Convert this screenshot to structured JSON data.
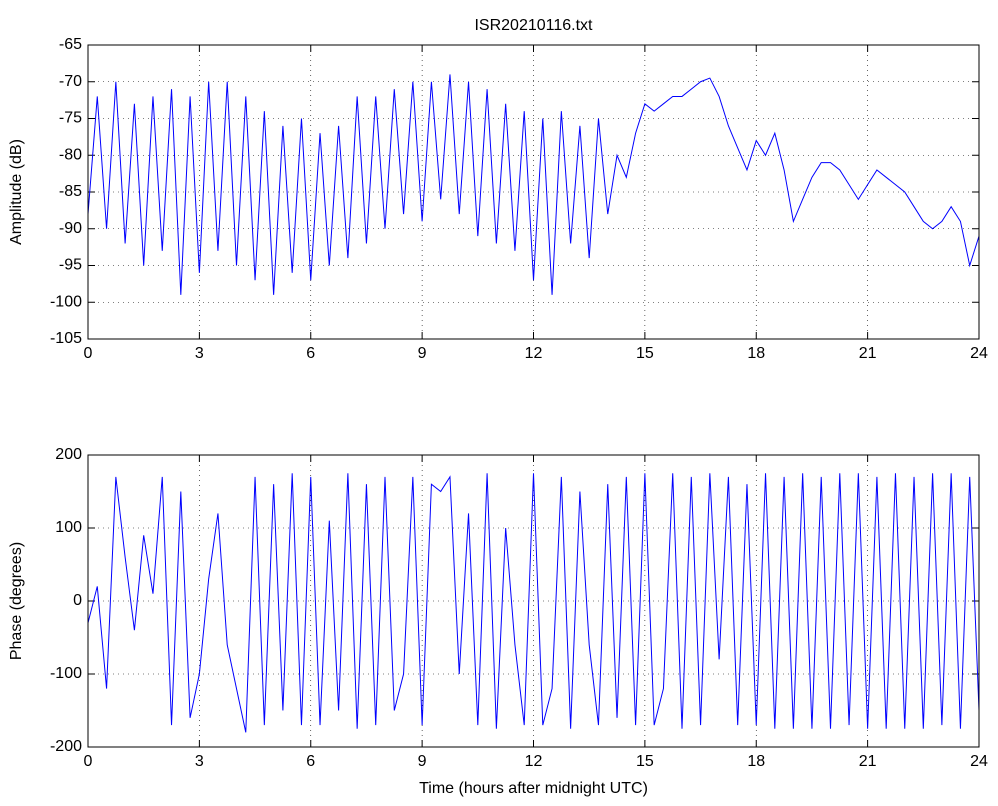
{
  "chart_data": [
    {
      "type": "line",
      "title": "ISR20210116.txt",
      "y_label": "Amplitude (dB)",
      "grid": true,
      "x": [
        0,
        0.25,
        0.5,
        0.75,
        1,
        1.25,
        1.5,
        1.75,
        2,
        2.25,
        2.5,
        2.75,
        3,
        3.25,
        3.5,
        3.75,
        4,
        4.25,
        4.5,
        4.75,
        5,
        5.25,
        5.5,
        5.75,
        6,
        6.25,
        6.5,
        6.75,
        7,
        7.25,
        7.5,
        7.75,
        8,
        8.25,
        8.5,
        8.75,
        9,
        9.25,
        9.5,
        9.75,
        10,
        10.25,
        10.5,
        10.75,
        11,
        11.25,
        11.5,
        11.75,
        12,
        12.25,
        12.5,
        12.75,
        13,
        13.25,
        13.5,
        13.75,
        14,
        14.25,
        14.5,
        14.75,
        15,
        15.25,
        15.5,
        15.75,
        16,
        16.25,
        16.5,
        16.75,
        17,
        17.25,
        17.5,
        17.75,
        18,
        18.25,
        18.5,
        18.75,
        19,
        19.25,
        19.5,
        19.75,
        20,
        20.25,
        20.5,
        20.75,
        21,
        21.25,
        21.5,
        21.75,
        22,
        22.25,
        22.5,
        22.75,
        23,
        23.25,
        23.5,
        23.75,
        24
      ],
      "series": [
        {
          "color": "#0000ff",
          "values": [
            -88,
            -72,
            -90,
            -70,
            -92,
            -73,
            -95,
            -72,
            -93,
            -71,
            -99,
            -72,
            -96,
            -70,
            -93,
            -70,
            -95,
            -72,
            -97,
            -74,
            -99,
            -76,
            -96,
            -75,
            -97,
            -77,
            -95,
            -76,
            -94,
            -72,
            -92,
            -72,
            -90,
            -71,
            -88,
            -70,
            -89,
            -70,
            -86,
            -69,
            -88,
            -70,
            -91,
            -71,
            -92,
            -73,
            -93,
            -74,
            -97,
            -75,
            -99,
            -74,
            -92,
            -76,
            -94,
            -75,
            -88,
            -80,
            -83,
            -77,
            -73,
            -74,
            -73,
            -72,
            -72,
            -71,
            -70,
            -69.5,
            -72,
            -76,
            -79,
            -82,
            -78,
            -80,
            -77,
            -82,
            -89,
            -86,
            -83,
            -81,
            -81,
            -82,
            -84,
            -86,
            -84,
            -82,
            -83,
            -84,
            -85,
            -87,
            -89,
            -90,
            -89,
            -87,
            -89,
            -95,
            -91
          ]
        }
      ],
      "xlim": [
        0,
        24
      ],
      "xticks": [
        0,
        3,
        6,
        9,
        12,
        15,
        18,
        21,
        24
      ],
      "ylim": [
        -105,
        -65
      ],
      "yticks": [
        -105,
        -100,
        -95,
        -90,
        -85,
        -80,
        -75,
        -70,
        -65
      ]
    },
    {
      "type": "line",
      "x_label": "Time (hours after midnight UTC)",
      "y_label": "Phase (degrees)",
      "grid": true,
      "x": [
        0,
        0.25,
        0.5,
        0.75,
        1,
        1.25,
        1.5,
        1.75,
        2,
        2.25,
        2.5,
        2.75,
        3,
        3.25,
        3.5,
        3.75,
        4,
        4.25,
        4.5,
        4.75,
        5,
        5.25,
        5.5,
        5.75,
        6,
        6.25,
        6.5,
        6.75,
        7,
        7.25,
        7.5,
        7.75,
        8,
        8.25,
        8.5,
        8.75,
        9,
        9.25,
        9.5,
        9.75,
        10,
        10.25,
        10.5,
        10.75,
        11,
        11.25,
        11.5,
        11.75,
        12,
        12.25,
        12.5,
        12.75,
        13,
        13.25,
        13.5,
        13.75,
        14,
        14.25,
        14.5,
        14.75,
        15,
        15.25,
        15.5,
        15.75,
        16,
        16.25,
        16.5,
        16.75,
        17,
        17.25,
        17.5,
        17.75,
        18,
        18.25,
        18.5,
        18.75,
        19,
        19.25,
        19.5,
        19.75,
        20,
        20.25,
        20.5,
        20.75,
        21,
        21.25,
        21.5,
        21.75,
        22,
        22.25,
        22.5,
        22.75,
        23,
        23.25,
        23.5,
        23.75,
        24
      ],
      "series": [
        {
          "color": "#0000ff",
          "values": [
            -30,
            20,
            -120,
            170,
            60,
            -40,
            90,
            10,
            170,
            -170,
            150,
            -160,
            -100,
            30,
            120,
            -60,
            -120,
            -180,
            170,
            -170,
            160,
            -150,
            175,
            -170,
            170,
            -170,
            110,
            -150,
            175,
            -175,
            160,
            -170,
            170,
            -150,
            -100,
            170,
            -170,
            160,
            150,
            170,
            -100,
            120,
            -170,
            175,
            -175,
            100,
            -60,
            -170,
            175,
            -170,
            -120,
            170,
            -175,
            150,
            -60,
            -170,
            160,
            -160,
            170,
            -170,
            175,
            -170,
            -120,
            175,
            -175,
            170,
            -170,
            175,
            -80,
            170,
            -170,
            160,
            -170,
            175,
            -175,
            170,
            -175,
            175,
            -175,
            170,
            -175,
            175,
            -170,
            175,
            -175,
            170,
            -175,
            175,
            -175,
            170,
            -175,
            175,
            -170,
            175,
            -175,
            170,
            -150
          ]
        }
      ],
      "xlim": [
        0,
        24
      ],
      "xticks": [
        0,
        3,
        6,
        9,
        12,
        15,
        18,
        21,
        24
      ],
      "ylim": [
        -200,
        200
      ],
      "yticks": [
        -200,
        -100,
        0,
        100,
        200
      ]
    }
  ]
}
